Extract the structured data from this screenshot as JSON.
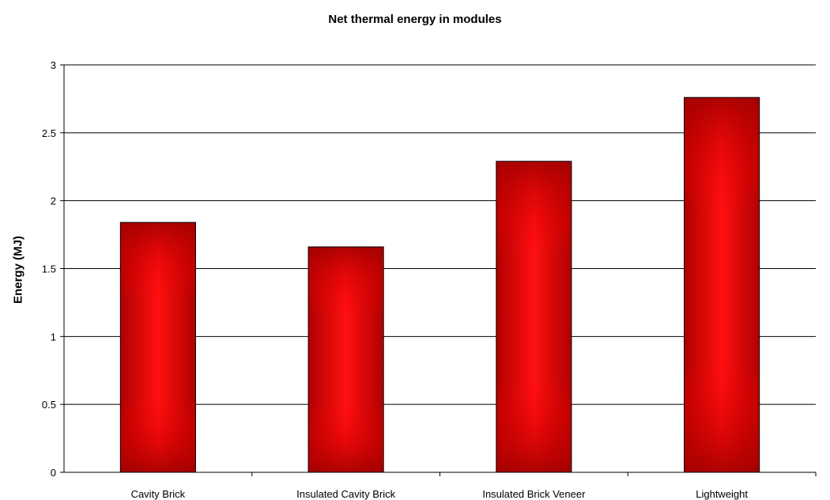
{
  "chart_data": {
    "type": "bar",
    "title": "Net thermal energy in modules",
    "xlabel": "",
    "ylabel": "Energy (MJ)",
    "categories": [
      "Cavity Brick",
      "Insulated Cavity Brick",
      "Insulated Brick Veneer",
      "Lightweight"
    ],
    "values": [
      1.84,
      1.66,
      2.29,
      2.76
    ],
    "ylim": [
      0,
      3
    ],
    "yticks": [
      "0",
      "0.5",
      "1",
      "1.5",
      "2",
      "2.5",
      "3"
    ],
    "grid": true,
    "legend": "none",
    "bar_color_center": "#ff0000",
    "bar_color_edge": "#b00000"
  }
}
